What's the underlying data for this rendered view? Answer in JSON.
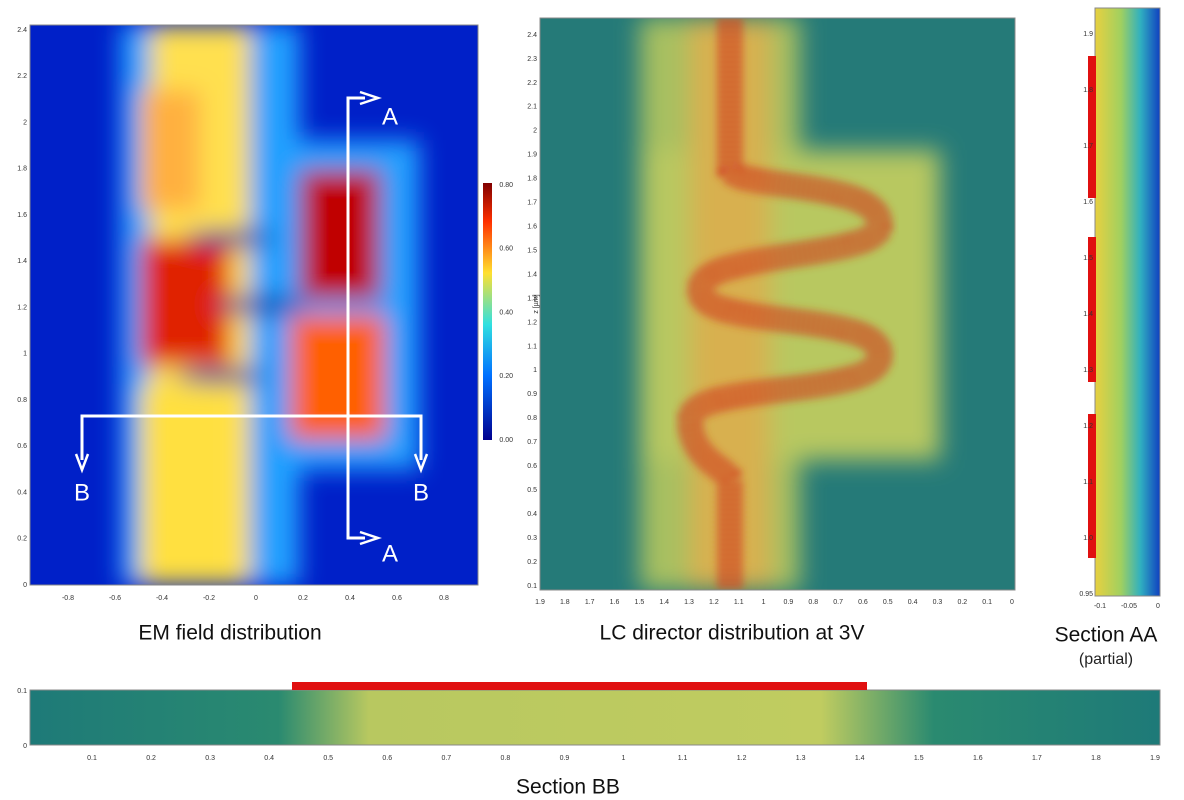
{
  "panels": {
    "em": {
      "caption": "EM field distribution",
      "yticks": [
        "0",
        "0.2",
        "0.4",
        "0.6",
        "0.8",
        "1",
        "1.2",
        "1.4",
        "1.6",
        "1.8",
        "2",
        "2.2",
        "2.4"
      ],
      "xticks": [
        "-0.8",
        "-0.6",
        "-0.4",
        "-0.2",
        "0",
        "0.2",
        "0.4",
        "0.6",
        "0.8"
      ],
      "colorbar_ticks": [
        "0.00",
        "0.20",
        "0.40",
        "0.60",
        "0.80"
      ],
      "markers": [
        "A",
        "A",
        "B",
        "B"
      ]
    },
    "lc": {
      "caption": "LC director distribution at 3V",
      "y_label": "z [µm]",
      "yticks": [
        "0.1",
        "0.2",
        "0.3",
        "0.4",
        "0.5",
        "0.6",
        "0.7",
        "0.8",
        "0.9",
        "1",
        "1.1",
        "1.2",
        "1.3",
        "1.4",
        "1.5",
        "1.6",
        "1.7",
        "1.8",
        "1.9",
        "2",
        "2.1",
        "2.2",
        "2.3",
        "2.4"
      ],
      "xticks": [
        "1.9",
        "1.8",
        "1.7",
        "1.6",
        "1.5",
        "1.4",
        "1.3",
        "1.2",
        "1.1",
        "1",
        "0.9",
        "0.8",
        "0.7",
        "0.6",
        "0.5",
        "0.4",
        "0.3",
        "0.2",
        "0.1",
        "0"
      ]
    },
    "aa": {
      "caption": "Section AA",
      "subcaption": "(partial)",
      "yticks": [
        "1.9",
        "1.8",
        "1.7",
        "1.6",
        "1.5",
        "1.4",
        "1.3",
        "1.2",
        "1.1",
        "1.0",
        "0.95"
      ],
      "xticks": [
        "-0.1",
        "-0.05",
        "0"
      ]
    },
    "bb": {
      "caption": "Section BB",
      "yticks": [
        "0",
        "0.1"
      ],
      "xticks": [
        "0.1",
        "0.2",
        "0.3",
        "0.4",
        "0.5",
        "0.6",
        "0.7",
        "0.8",
        "0.9",
        "1",
        "1.1",
        "1.2",
        "1.3",
        "1.4",
        "1.5",
        "1.6",
        "1.7",
        "1.8",
        "1.9"
      ]
    }
  }
}
